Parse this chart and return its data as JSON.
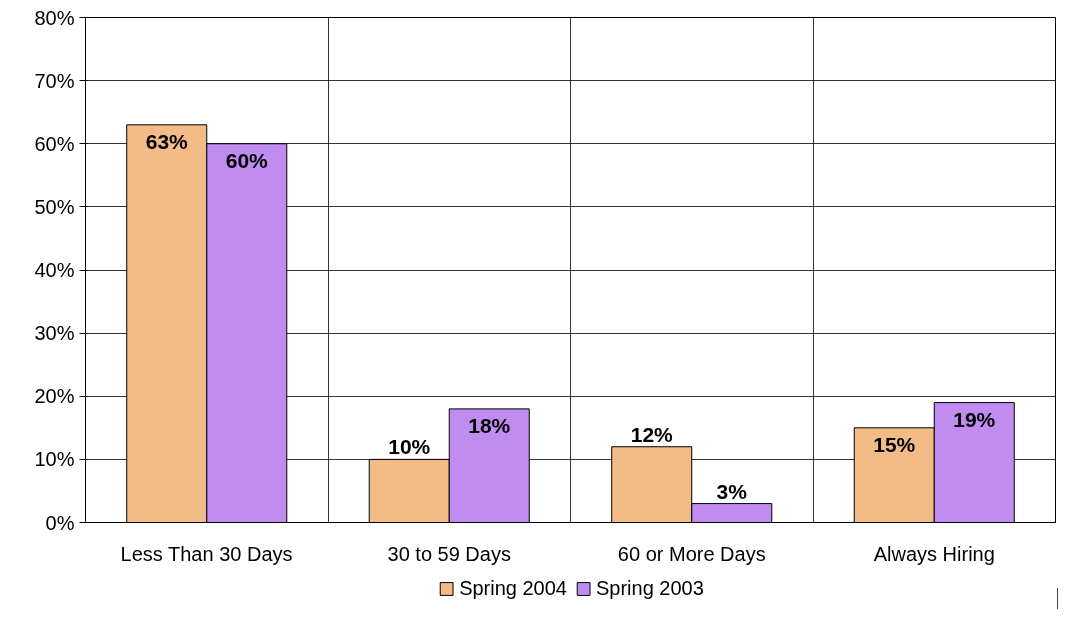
{
  "chart_data": {
    "type": "bar",
    "categories": [
      "Less Than 30 Days",
      "30 to 59 Days",
      "60 or More Days",
      "Always Hiring"
    ],
    "series": [
      {
        "name": "Spring 2004",
        "color": "#f2bb88",
        "values": [
          63,
          10,
          12,
          15
        ]
      },
      {
        "name": "Spring 2003",
        "color": "#c08cf0",
        "values": [
          60,
          18,
          3,
          19
        ]
      }
    ],
    "ylim": [
      0,
      80
    ],
    "yticks": [
      {
        "value": 0,
        "label": "0%"
      },
      {
        "value": 10,
        "label": "10%"
      },
      {
        "value": 20,
        "label": "20%"
      },
      {
        "value": 30,
        "label": "30%"
      },
      {
        "value": 40,
        "label": "40%"
      },
      {
        "value": 50,
        "label": "50%"
      },
      {
        "value": 60,
        "label": "60%"
      },
      {
        "value": 70,
        "label": "70%"
      },
      {
        "value": 80,
        "label": "80%"
      }
    ],
    "value_labels": [
      [
        "63%",
        "10%",
        "12%",
        "15%"
      ],
      [
        "60%",
        "18%",
        "3%",
        "19%"
      ]
    ],
    "grid": true,
    "legend": "bottom"
  }
}
